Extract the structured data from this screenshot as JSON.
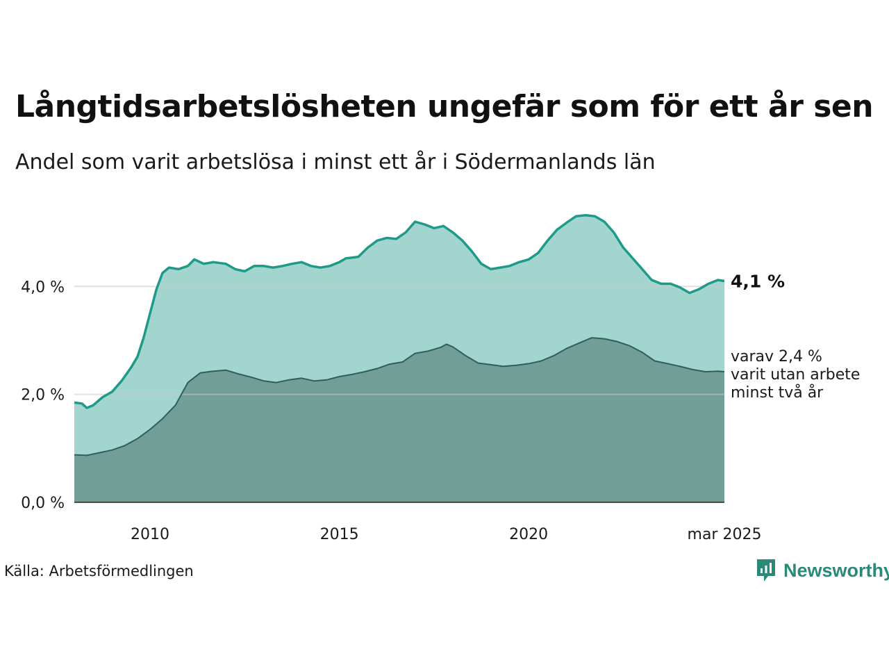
{
  "title": "Långtidsarbetslösheten ungefär som för ett år sen",
  "subtitle": "Andel som varit arbetslösa i minst ett år i Södermanlands län",
  "source": "Källa: Arbetsförmedlingen",
  "brand": "Newsworthy",
  "colors": {
    "total_line": "#1e9a8a",
    "total_fill": "#a3d5cf",
    "long_line": "#2f5f58",
    "long_fill": "#729e98",
    "grid": "#dddddd",
    "brand": "#2a8a7a"
  },
  "chart_data": {
    "type": "area",
    "x_ticks": [
      {
        "x": 2010,
        "label": "2010"
      },
      {
        "x": 2015,
        "label": "2015"
      },
      {
        "x": 2020,
        "label": "2020"
      },
      {
        "x": 2025.17,
        "label": "mar 2025"
      }
    ],
    "y_ticks": [
      {
        "y": 0,
        "label": "0,0 %"
      },
      {
        "y": 2,
        "label": "2,0 %"
      },
      {
        "y": 4,
        "label": "4,0 %"
      }
    ],
    "xlim": [
      2008.0,
      2025.17
    ],
    "ylim": [
      0,
      5.6
    ],
    "grid": true,
    "series": [
      {
        "name": "Andel som varit arbetslösa i minst ett år",
        "end_label": "4,1 %",
        "points": [
          [
            2008.0,
            1.85
          ],
          [
            2008.2,
            1.83
          ],
          [
            2008.33,
            1.75
          ],
          [
            2008.5,
            1.8
          ],
          [
            2008.75,
            1.95
          ],
          [
            2009.0,
            2.05
          ],
          [
            2009.25,
            2.25
          ],
          [
            2009.5,
            2.5
          ],
          [
            2009.67,
            2.7
          ],
          [
            2009.83,
            3.05
          ],
          [
            2010.0,
            3.5
          ],
          [
            2010.17,
            3.95
          ],
          [
            2010.33,
            4.25
          ],
          [
            2010.5,
            4.35
          ],
          [
            2010.75,
            4.32
          ],
          [
            2011.0,
            4.38
          ],
          [
            2011.17,
            4.5
          ],
          [
            2011.42,
            4.42
          ],
          [
            2011.67,
            4.45
          ],
          [
            2012.0,
            4.42
          ],
          [
            2012.25,
            4.32
          ],
          [
            2012.5,
            4.28
          ],
          [
            2012.75,
            4.38
          ],
          [
            2013.0,
            4.38
          ],
          [
            2013.25,
            4.35
          ],
          [
            2013.5,
            4.38
          ],
          [
            2013.75,
            4.42
          ],
          [
            2014.0,
            4.45
          ],
          [
            2014.25,
            4.38
          ],
          [
            2014.5,
            4.35
          ],
          [
            2014.75,
            4.38
          ],
          [
            2015.0,
            4.45
          ],
          [
            2015.17,
            4.52
          ],
          [
            2015.5,
            4.55
          ],
          [
            2015.75,
            4.72
          ],
          [
            2016.0,
            4.85
          ],
          [
            2016.25,
            4.9
          ],
          [
            2016.5,
            4.88
          ],
          [
            2016.75,
            5.0
          ],
          [
            2017.0,
            5.2
          ],
          [
            2017.25,
            5.15
          ],
          [
            2017.5,
            5.08
          ],
          [
            2017.75,
            5.12
          ],
          [
            2018.0,
            5.0
          ],
          [
            2018.25,
            4.85
          ],
          [
            2018.5,
            4.65
          ],
          [
            2018.75,
            4.42
          ],
          [
            2019.0,
            4.32
          ],
          [
            2019.25,
            4.35
          ],
          [
            2019.5,
            4.38
          ],
          [
            2019.75,
            4.45
          ],
          [
            2020.0,
            4.5
          ],
          [
            2020.25,
            4.62
          ],
          [
            2020.5,
            4.85
          ],
          [
            2020.75,
            5.05
          ],
          [
            2021.0,
            5.18
          ],
          [
            2021.25,
            5.3
          ],
          [
            2021.5,
            5.32
          ],
          [
            2021.75,
            5.3
          ],
          [
            2022.0,
            5.2
          ],
          [
            2022.25,
            5.0
          ],
          [
            2022.5,
            4.72
          ],
          [
            2022.75,
            4.52
          ],
          [
            2023.0,
            4.32
          ],
          [
            2023.25,
            4.12
          ],
          [
            2023.5,
            4.05
          ],
          [
            2023.75,
            4.05
          ],
          [
            2024.0,
            3.98
          ],
          [
            2024.25,
            3.88
          ],
          [
            2024.5,
            3.95
          ],
          [
            2024.75,
            4.05
          ],
          [
            2025.0,
            4.12
          ],
          [
            2025.17,
            4.1
          ]
        ]
      },
      {
        "name": "varit utan arbete minst två år",
        "end_label": "varav 2,4 %\nvarit utan arbete\nminst två år",
        "points": [
          [
            2008.0,
            0.88
          ],
          [
            2008.33,
            0.87
          ],
          [
            2008.67,
            0.92
          ],
          [
            2009.0,
            0.97
          ],
          [
            2009.33,
            1.05
          ],
          [
            2009.67,
            1.18
          ],
          [
            2010.0,
            1.35
          ],
          [
            2010.33,
            1.55
          ],
          [
            2010.67,
            1.8
          ],
          [
            2011.0,
            2.22
          ],
          [
            2011.33,
            2.4
          ],
          [
            2011.67,
            2.43
          ],
          [
            2012.0,
            2.45
          ],
          [
            2012.33,
            2.38
          ],
          [
            2012.67,
            2.32
          ],
          [
            2013.0,
            2.25
          ],
          [
            2013.33,
            2.22
          ],
          [
            2013.67,
            2.27
          ],
          [
            2014.0,
            2.3
          ],
          [
            2014.33,
            2.25
          ],
          [
            2014.67,
            2.27
          ],
          [
            2015.0,
            2.33
          ],
          [
            2015.33,
            2.37
          ],
          [
            2015.67,
            2.42
          ],
          [
            2016.0,
            2.48
          ],
          [
            2016.33,
            2.56
          ],
          [
            2016.67,
            2.6
          ],
          [
            2017.0,
            2.76
          ],
          [
            2017.33,
            2.8
          ],
          [
            2017.67,
            2.87
          ],
          [
            2017.83,
            2.93
          ],
          [
            2018.0,
            2.88
          ],
          [
            2018.33,
            2.72
          ],
          [
            2018.67,
            2.58
          ],
          [
            2019.0,
            2.55
          ],
          [
            2019.33,
            2.52
          ],
          [
            2019.67,
            2.54
          ],
          [
            2020.0,
            2.57
          ],
          [
            2020.33,
            2.62
          ],
          [
            2020.67,
            2.72
          ],
          [
            2021.0,
            2.85
          ],
          [
            2021.33,
            2.95
          ],
          [
            2021.67,
            3.05
          ],
          [
            2022.0,
            3.03
          ],
          [
            2022.33,
            2.98
          ],
          [
            2022.67,
            2.9
          ],
          [
            2023.0,
            2.78
          ],
          [
            2023.33,
            2.62
          ],
          [
            2023.67,
            2.57
          ],
          [
            2024.0,
            2.52
          ],
          [
            2024.33,
            2.46
          ],
          [
            2024.67,
            2.42
          ],
          [
            2025.0,
            2.43
          ],
          [
            2025.17,
            2.42
          ]
        ]
      }
    ]
  }
}
